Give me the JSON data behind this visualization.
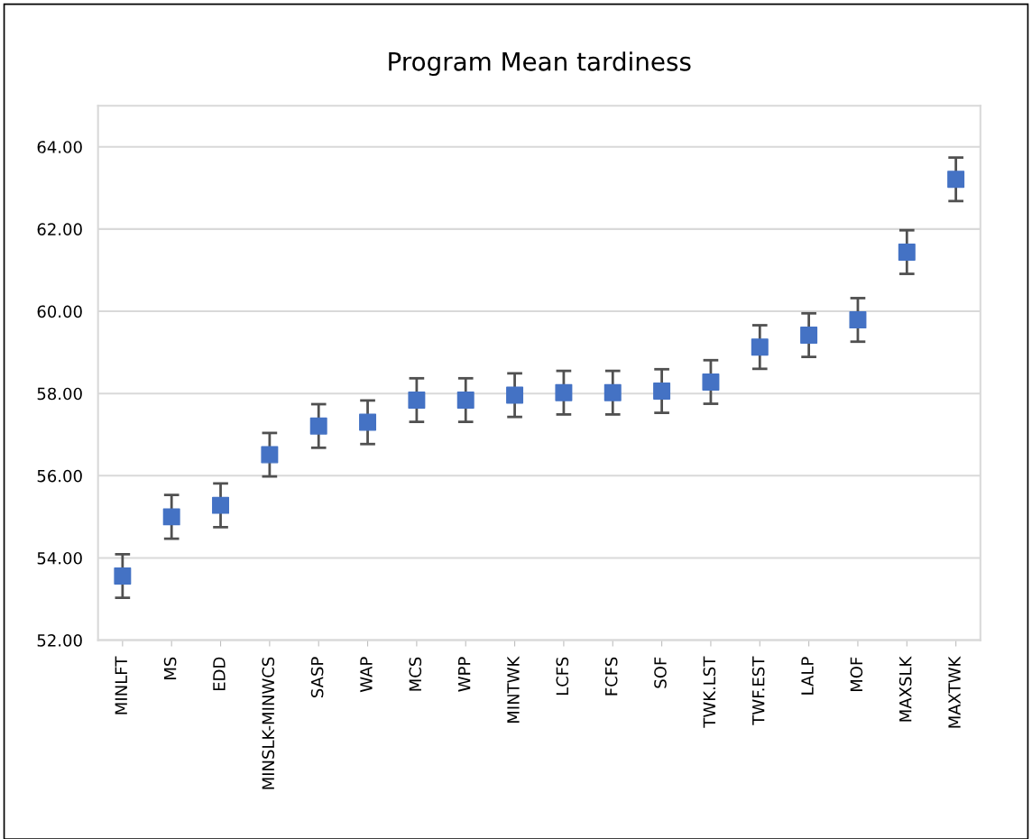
{
  "chart_data": {
    "type": "scatter",
    "title": "Program Mean tardiness",
    "categories": [
      "MINLFT",
      "MS",
      "EDD",
      "MINSLK-MINWCS",
      "SASP",
      "WAP",
      "MCS",
      "WPP",
      "MINTWK",
      "LCFS",
      "FCFS",
      "SOF",
      "TWK.LST",
      "TWF.EST",
      "LALP",
      "MOF",
      "MAXSLK",
      "MAXTWK"
    ],
    "series": [
      {
        "color": "#4472c4",
        "values": [
          53.56,
          55.0,
          55.28,
          56.51,
          57.21,
          57.3,
          57.84,
          57.84,
          57.96,
          58.02,
          58.02,
          58.06,
          58.28,
          59.13,
          59.42,
          59.79,
          61.44,
          63.21
        ],
        "errors": [
          0.53,
          0.53,
          0.53,
          0.53,
          0.53,
          0.53,
          0.53,
          0.53,
          0.53,
          0.53,
          0.53,
          0.53,
          0.53,
          0.53,
          0.53,
          0.53,
          0.53,
          0.53
        ]
      }
    ],
    "ylim": [
      52,
      65
    ],
    "yticks": [
      {
        "value": 52,
        "label": "52.00"
      },
      {
        "value": 54,
        "label": "54.00"
      },
      {
        "value": 56,
        "label": "56.00"
      },
      {
        "value": 58,
        "label": "58.00"
      },
      {
        "value": 60,
        "label": "60.00"
      },
      {
        "value": 62,
        "label": "62.00"
      },
      {
        "value": 64,
        "label": "64.00"
      }
    ],
    "grid": "y",
    "marker": "square",
    "legend": false
  }
}
